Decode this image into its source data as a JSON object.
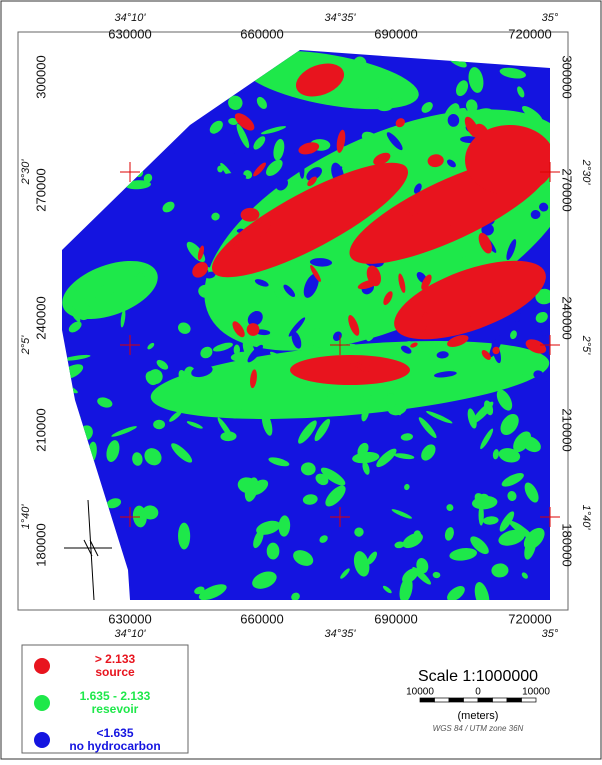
{
  "top_labels": {
    "degrees": [
      "34°10'",
      "34°35'",
      "35°"
    ],
    "utm": [
      "630000",
      "660000",
      "690000",
      "720000"
    ]
  },
  "bottom_labels": {
    "utm": [
      "630000",
      "660000",
      "690000",
      "720000"
    ],
    "degrees": [
      "34°10'",
      "34°35'",
      "35°"
    ]
  },
  "left_labels": {
    "utm": [
      "300000",
      "270000",
      "240000",
      "210000",
      "180000"
    ],
    "degrees": [
      "2°30'",
      "2°5'",
      "1°40'"
    ]
  },
  "right_labels": {
    "utm": [
      "300000",
      "270000",
      "240000",
      "210000",
      "180000"
    ],
    "degrees": [
      "2°30'",
      "2°5'",
      "1°40'"
    ]
  },
  "legend": [
    {
      "label": "> 2.133",
      "description": "source",
      "color": "#e8141e"
    },
    {
      "label": "1.635 - 2.133",
      "description": "resevoir",
      "color": "#1ee84a"
    },
    {
      "label": "<1.635",
      "description": "no hydrocarbon",
      "color": "#1414e0"
    }
  ],
  "scale": {
    "title": "Scale 1:1000000",
    "ticks": [
      "10000",
      "0",
      "10000"
    ],
    "unit": "(meters)",
    "projection": "WGS 84 / UTM zone 36N"
  }
}
